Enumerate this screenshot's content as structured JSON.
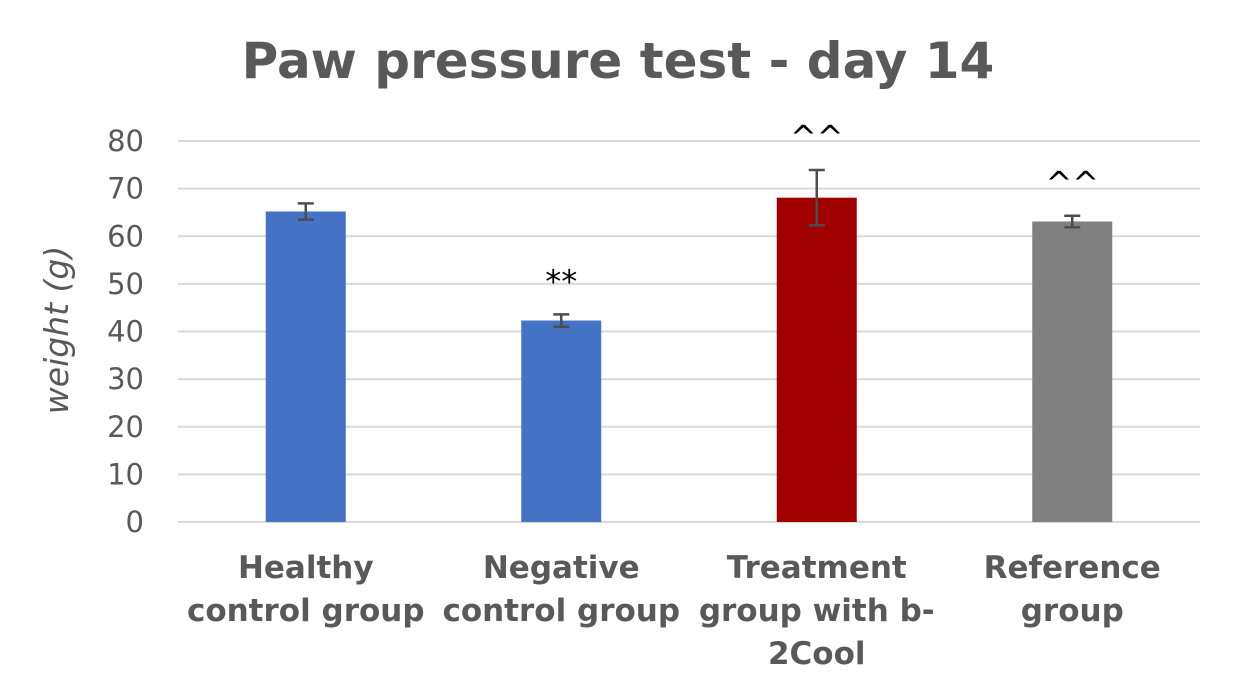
{
  "chart_data": {
    "type": "bar",
    "title": "Paw pressure test - day 14",
    "ylabel": "weight (g)",
    "xlabel": "",
    "ylim": [
      0,
      80
    ],
    "yticks": [
      0,
      10,
      20,
      30,
      40,
      50,
      60,
      70,
      80
    ],
    "grid": true,
    "legend": "none",
    "categories": [
      "Healthy control group",
      "Negative control group",
      "Treatment group with b-2Cool",
      "Reference group"
    ],
    "category_label_lines": [
      [
        "Healthy",
        "control group"
      ],
      [
        "Negative",
        "control group"
      ],
      [
        "Treatment",
        "group with b-",
        "2Cool"
      ],
      [
        "Reference",
        "group"
      ]
    ],
    "values": [
      65.2,
      42.3,
      68.1,
      63.1
    ],
    "error": [
      1.7,
      1.3,
      5.8,
      1.2
    ],
    "annotations": [
      "",
      "**",
      "^^",
      "^^"
    ],
    "colors": [
      "#4472c4",
      "#4472c4",
      "#a00000",
      "#808080"
    ]
  }
}
